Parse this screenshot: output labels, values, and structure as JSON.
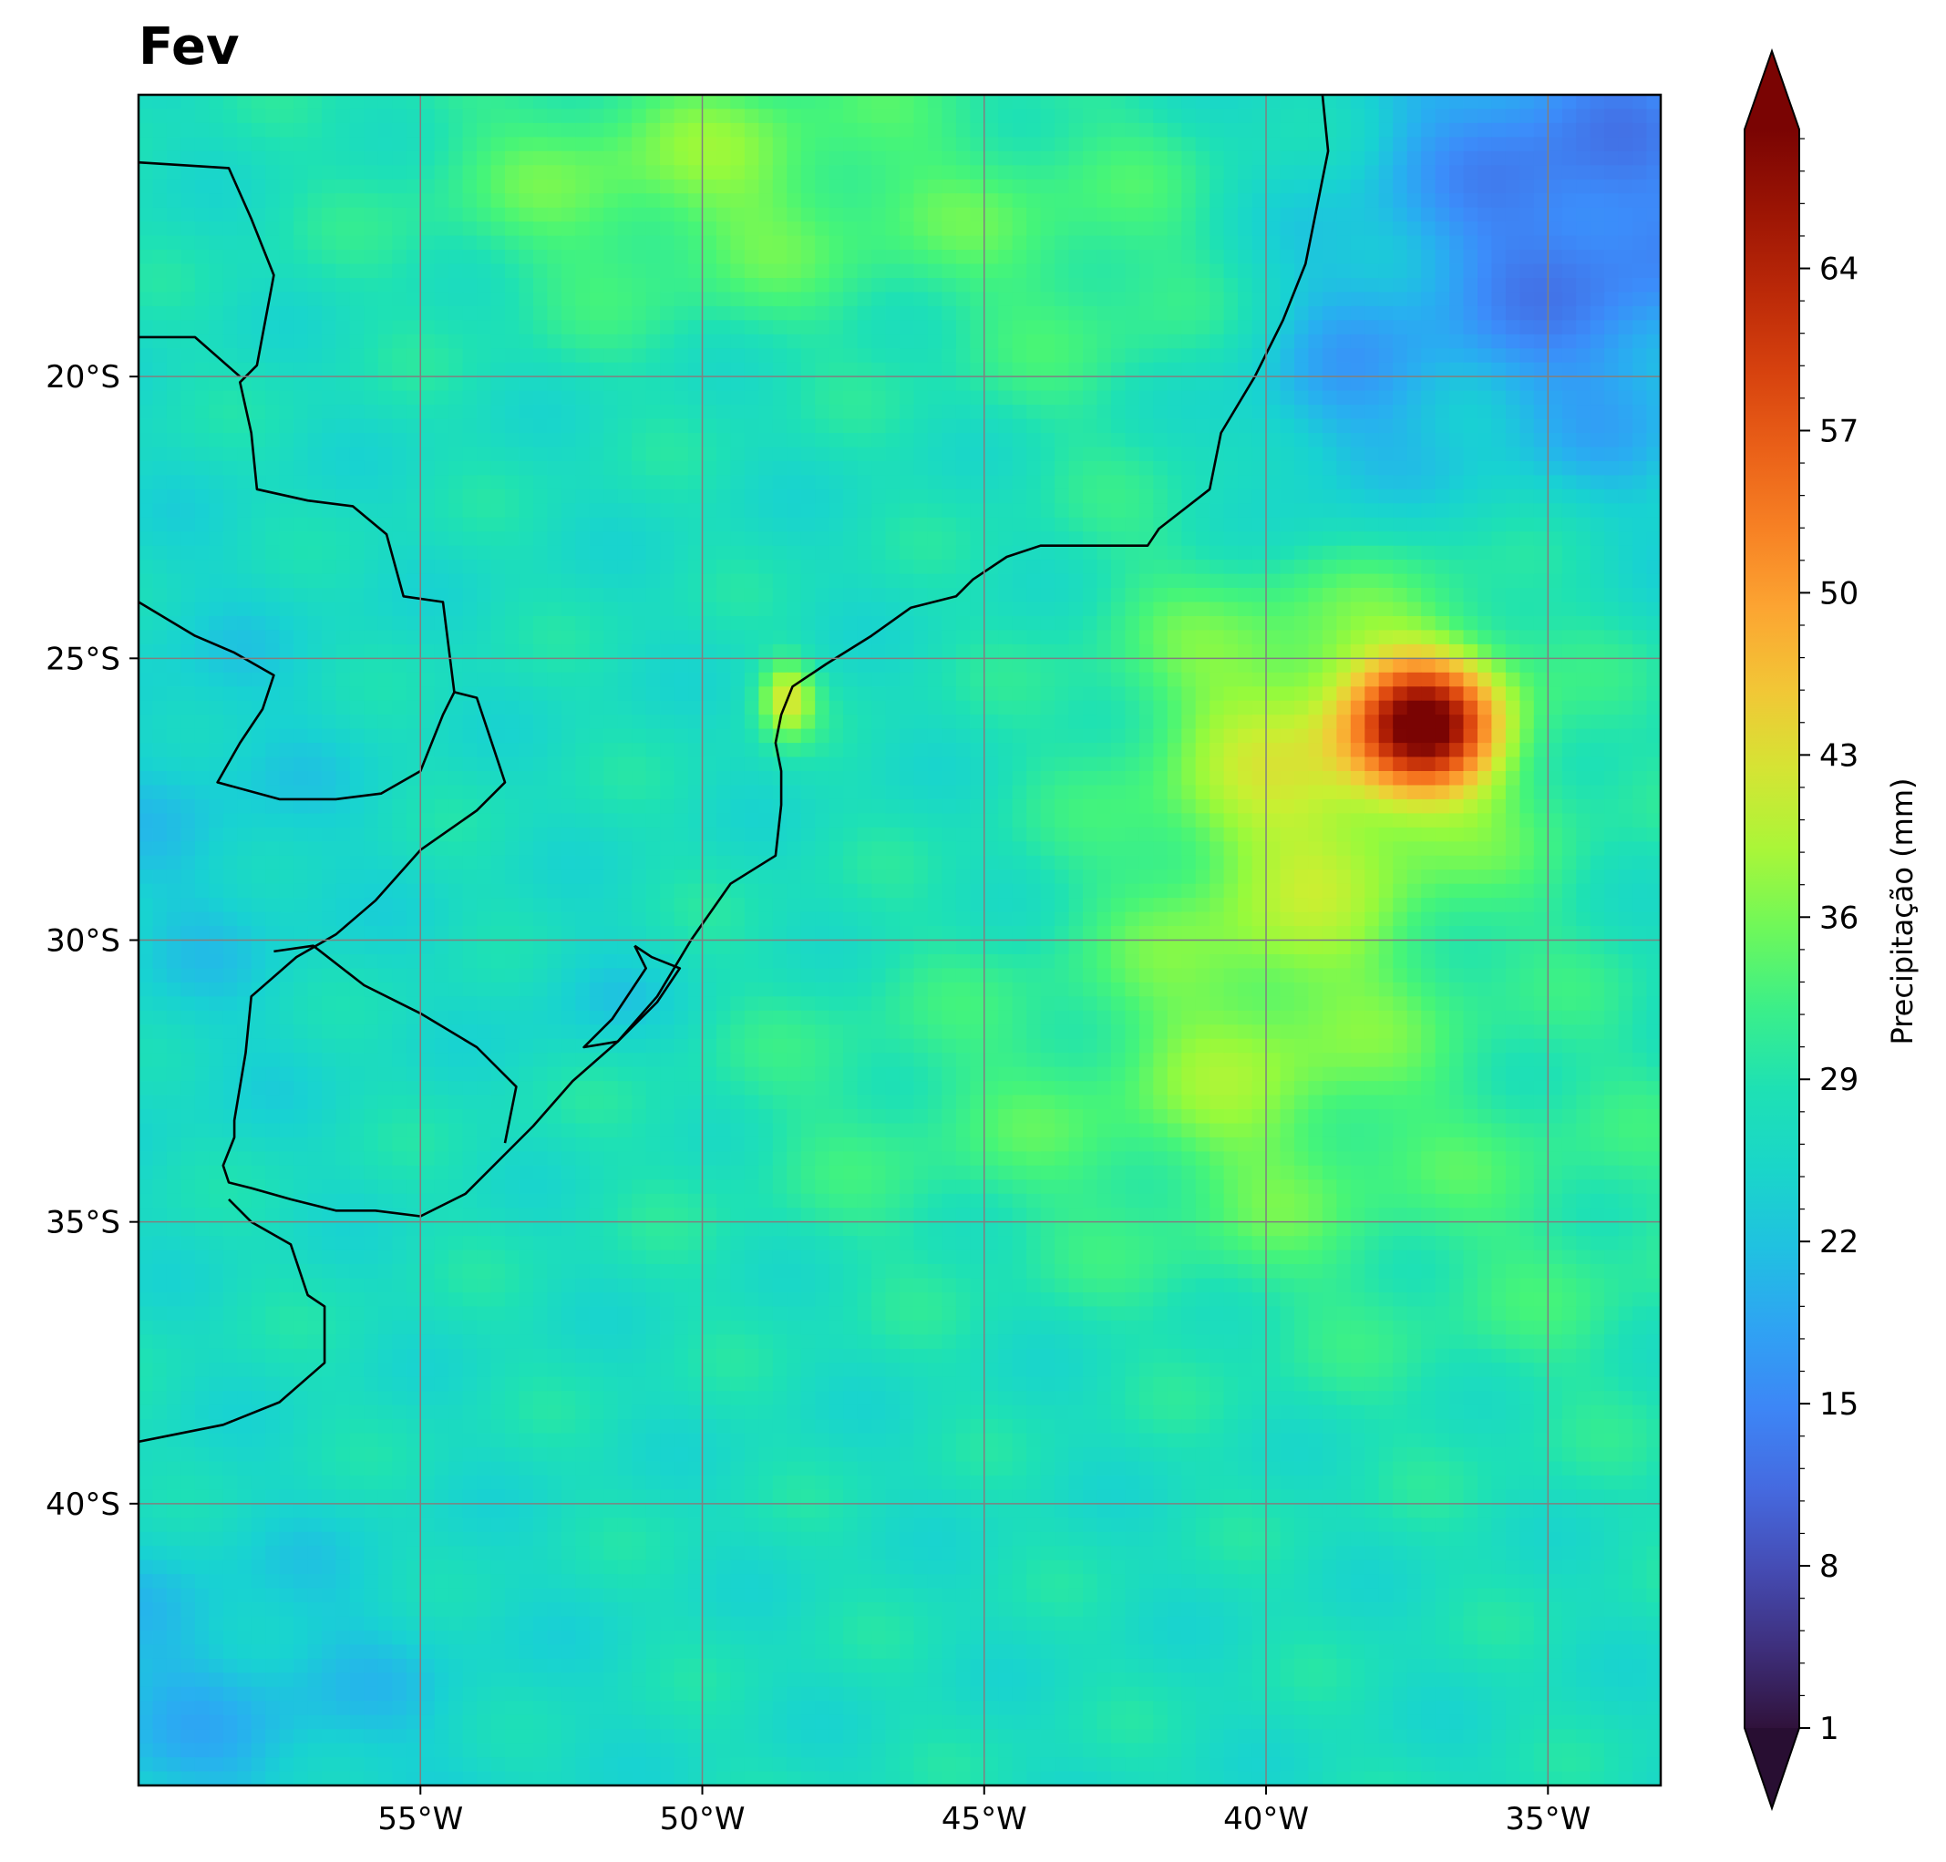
{
  "title": "Fev",
  "colors": {
    "grid": "#808080",
    "coastline": "#000000",
    "frame": "#000000"
  },
  "chart_data": {
    "type": "heatmap",
    "title": "Fev",
    "variable_label": "Precipitação (mm)",
    "lon_range": [
      -60,
      -33
    ],
    "lat_range": [
      -45,
      -15
    ],
    "x_ticks": [
      {
        "lon": -55,
        "label": "55°W"
      },
      {
        "lon": -50,
        "label": "50°W"
      },
      {
        "lon": -45,
        "label": "45°W"
      },
      {
        "lon": -40,
        "label": "40°W"
      },
      {
        "lon": -35,
        "label": "35°W"
      }
    ],
    "y_ticks": [
      {
        "lat": -20,
        "label": "20°S"
      },
      {
        "lat": -25,
        "label": "25°S"
      },
      {
        "lat": -30,
        "label": "30°S"
      },
      {
        "lat": -35,
        "label": "35°S"
      },
      {
        "lat": -40,
        "label": "40°S"
      }
    ],
    "colorbar": {
      "min": 1,
      "max": 70,
      "extend": "both",
      "colormap": "turbo",
      "ticks": [
        1,
        8,
        15,
        22,
        29,
        36,
        43,
        50,
        57,
        64
      ]
    },
    "grid": true,
    "features": [
      "Precipitation maximum near 37°W 26°S (>60 mm)",
      "Low values (<10 mm) in the northeast corner near 34°W 16°S"
    ]
  }
}
